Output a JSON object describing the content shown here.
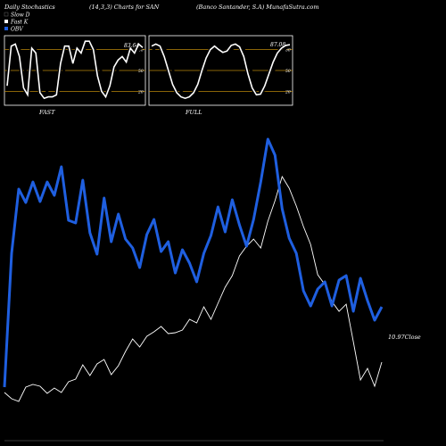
{
  "header": {
    "title_left": "Daily Stochastics",
    "title_mid": "(14,3,3) Charts for SAN",
    "title_right": "(Banco  Santander,  S.A)  MunafaSutra.com"
  },
  "legend": [
    {
      "label": "Slow  D",
      "color": "#000000"
    },
    {
      "label": "Fast K",
      "color": "#ffffff"
    },
    {
      "label": "OBV",
      "color": "#1f5fe0"
    }
  ],
  "panels": {
    "fast": {
      "caption": "FAST",
      "value_label": "83.64",
      "levels": [
        80,
        50,
        20
      ],
      "k": [
        28,
        85,
        88,
        70,
        25,
        15,
        82,
        75,
        18,
        10,
        12,
        12,
        15,
        60,
        85,
        85,
        60,
        82,
        75,
        92,
        92,
        80,
        42,
        20,
        12,
        28,
        55,
        65,
        70,
        62,
        82,
        75,
        88,
        83
      ],
      "d": [
        40,
        70,
        85,
        80,
        60,
        38,
        60,
        78,
        58,
        32,
        15,
        12,
        14,
        30,
        55,
        78,
        78,
        72,
        75,
        82,
        88,
        86,
        70,
        45,
        25,
        20,
        32,
        52,
        63,
        65,
        70,
        72,
        80,
        83
      ]
    },
    "full": {
      "caption": "FULL",
      "value_label": "87.08",
      "levels": [
        80,
        50,
        20
      ],
      "k": [
        85,
        88,
        85,
        70,
        50,
        30,
        18,
        12,
        10,
        12,
        18,
        30,
        50,
        68,
        80,
        85,
        80,
        76,
        78,
        86,
        88,
        84,
        70,
        45,
        25,
        15,
        16,
        28,
        45,
        62,
        75,
        82,
        86,
        87
      ],
      "d": [
        75,
        85,
        86,
        82,
        70,
        52,
        32,
        20,
        14,
        12,
        14,
        22,
        35,
        52,
        68,
        80,
        83,
        80,
        77,
        80,
        84,
        85,
        80,
        64,
        45,
        28,
        20,
        22,
        33,
        48,
        63,
        74,
        82,
        85
      ]
    }
  },
  "main": {
    "close_label": "10.97",
    "close_word": "Close",
    "chart_data": {
      "type": "line",
      "x": [
        1,
        2,
        3,
        4,
        5,
        6,
        7,
        8,
        9,
        10,
        11,
        12,
        13,
        14,
        15,
        16,
        17,
        18,
        19,
        20,
        21,
        22,
        23,
        24,
        25,
        26,
        27,
        28,
        29,
        30,
        31,
        32,
        33,
        34,
        35,
        36,
        37,
        38,
        39,
        40,
        41,
        42,
        43,
        44,
        45,
        46,
        47,
        48,
        49,
        50,
        51,
        52,
        53,
        54
      ],
      "series": [
        {
          "name": "OBV",
          "color": "#1f5fe0",
          "values": [
            60,
            210,
            282,
            267,
            290,
            268,
            290,
            275,
            307,
            247,
            244,
            292,
            233,
            209,
            272,
            223,
            254,
            226,
            216,
            194,
            231,
            248,
            212,
            223,
            188,
            214,
            199,
            178,
            210,
            230,
            262,
            234,
            270,
            242,
            218,
            248,
            290,
            338,
            320,
            260,
            227,
            210,
            168,
            151,
            170,
            178,
            151,
            180,
            185,
            145,
            182,
            157,
            135,
            150
          ]
        },
        {
          "name": "Close",
          "color": "#ffffff",
          "values": [
            54,
            47,
            44,
            60,
            63,
            61,
            53,
            59,
            54,
            66,
            69,
            85,
            73,
            86,
            91,
            74,
            84,
            100,
            114,
            105,
            117,
            122,
            128,
            120,
            121,
            124,
            136,
            132,
            150,
            136,
            154,
            172,
            185,
            207,
            218,
            226,
            216,
            246,
            269,
            296,
            283,
            263,
            240,
            220,
            186,
            175,
            156,
            145,
            153,
            111,
            68,
            81,
            61,
            88
          ]
        }
      ]
    }
  }
}
